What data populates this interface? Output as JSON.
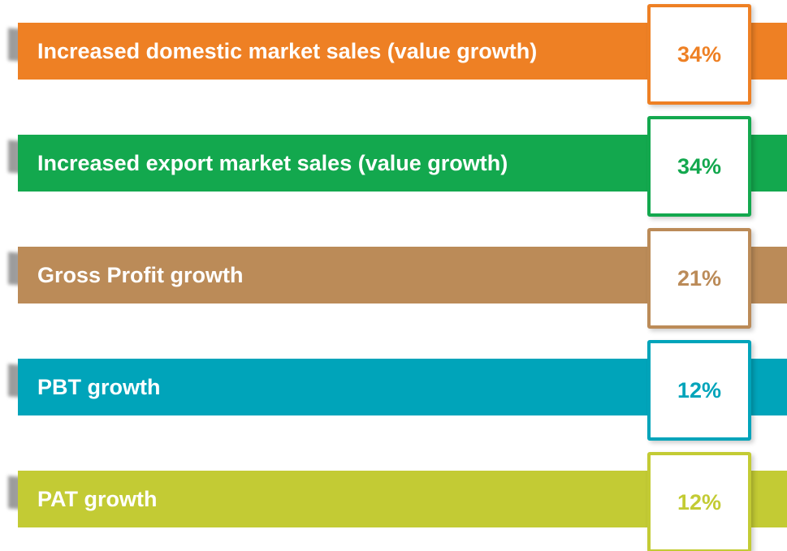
{
  "items": [
    {
      "label": "Increased domestic market sales (value growth)",
      "value": "34%",
      "color": "#ee8024"
    },
    {
      "label": "Increased export market sales (value growth)",
      "value": "34%",
      "color": "#13a84e"
    },
    {
      "label": "Gross Profit growth",
      "value": "21%",
      "color": "#bb8b58"
    },
    {
      "label": "PBT growth",
      "value": "12%",
      "color": "#00a4ba"
    },
    {
      "label": "PAT growth",
      "value": "12%",
      "color": "#c3cb34"
    }
  ]
}
